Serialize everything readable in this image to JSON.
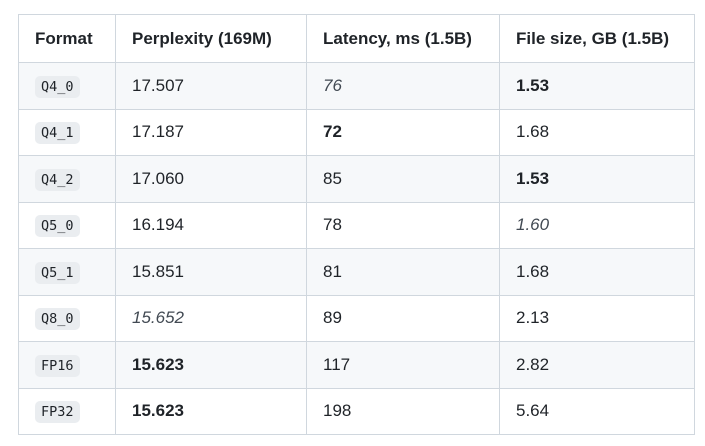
{
  "table": {
    "header": [
      "Format",
      "Perplexity (169M)",
      "Latency, ms (1.5B)",
      "File size, GB (1.5B)"
    ],
    "rows": [
      [
        "Q4_0",
        "17.507",
        "76",
        "1.53"
      ],
      [
        "Q4_1",
        "17.187",
        "72",
        "1.68"
      ],
      [
        "Q4_2",
        "17.060",
        "85",
        "1.53"
      ],
      [
        "Q5_0",
        "16.194",
        "78",
        "1.60"
      ],
      [
        "Q5_1",
        "15.851",
        "81",
        "1.68"
      ],
      [
        "Q8_0",
        "15.652",
        "89",
        "2.13"
      ],
      [
        "FP16",
        "15.623",
        "117",
        "2.82"
      ],
      [
        "FP32",
        "15.623",
        "198",
        "5.64"
      ]
    ]
  }
}
